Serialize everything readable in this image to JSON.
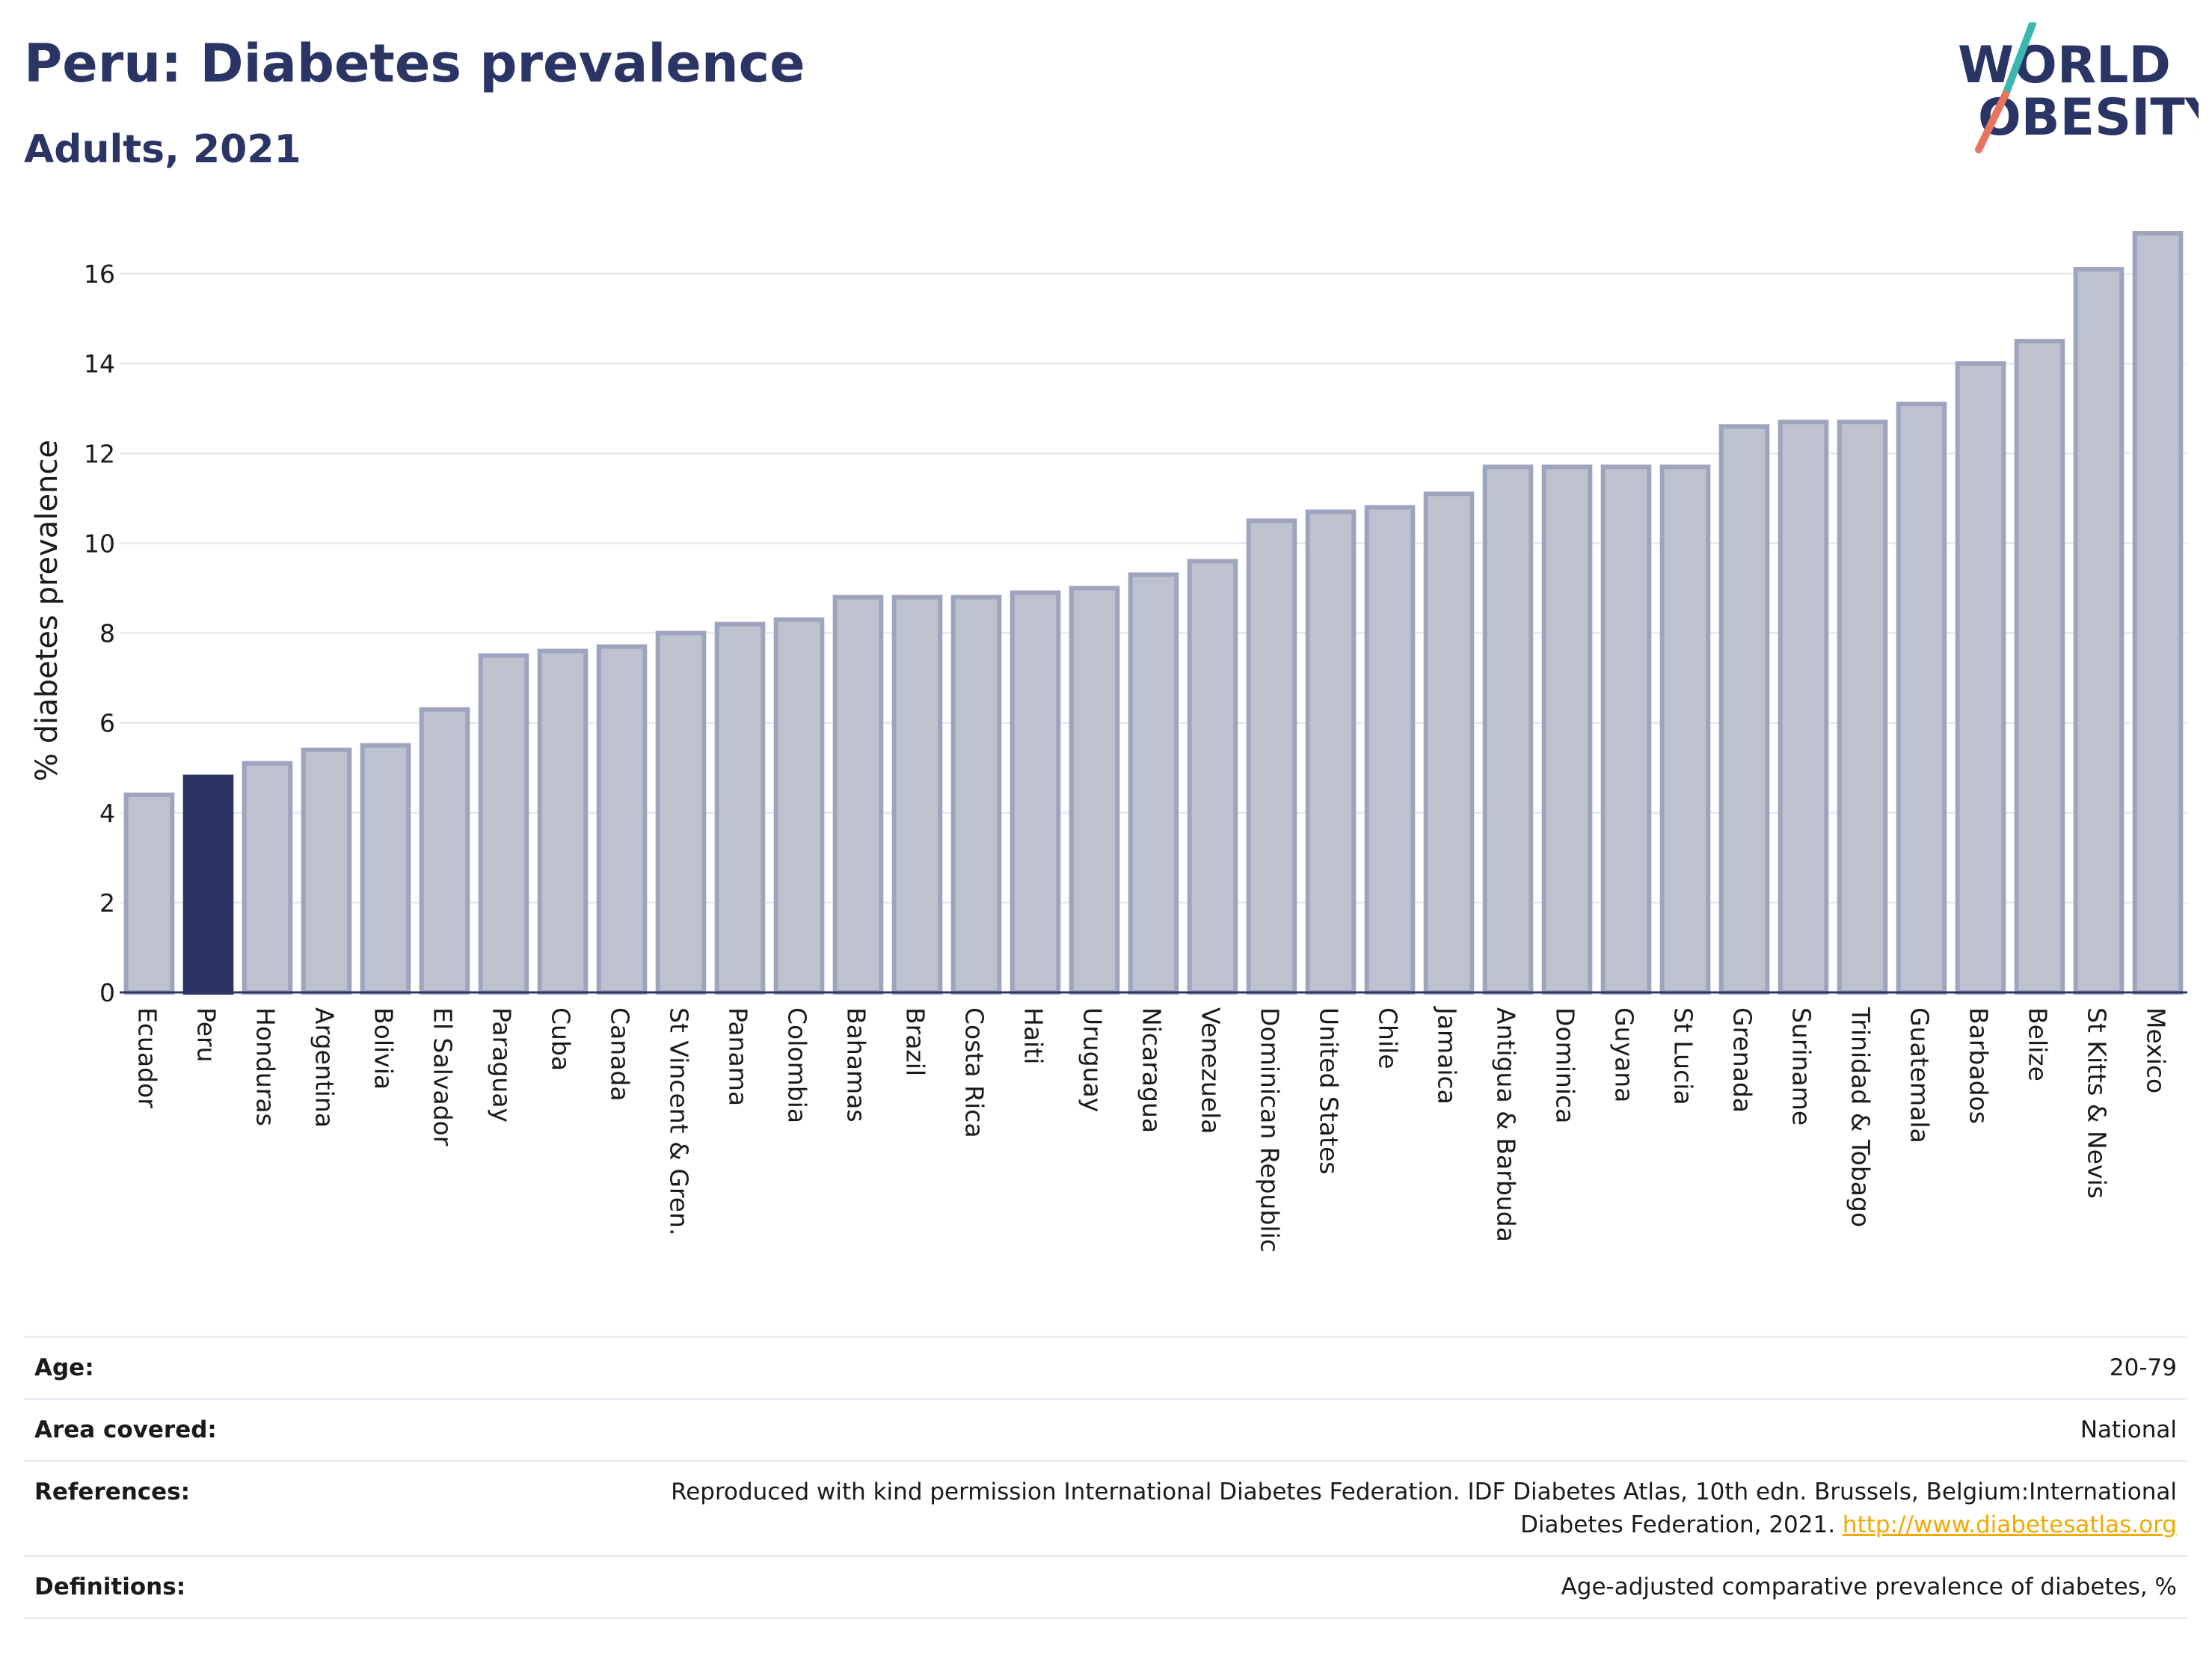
{
  "header": {
    "title": "Peru: Diabetes prevalence",
    "subtitle": "Adults, 2021",
    "logo_line1": "WORLD",
    "logo_line2": "OBESITY"
  },
  "colors": {
    "title": "#2b3565",
    "highlight_bar": "#2b3565",
    "other_bar_fill": "#bec2cf",
    "other_bar_stroke": "#9ea4bd",
    "grid": "#e6e8ee",
    "logo_teal": "#39b7b0",
    "logo_coral": "#e8735f",
    "link": "#f2a900"
  },
  "chart_data": {
    "type": "bar",
    "ylabel": "% diabetes prevalence",
    "xlabel": "",
    "ylim": [
      0,
      17
    ],
    "yticks": [
      0,
      2,
      4,
      6,
      8,
      10,
      12,
      14,
      16
    ],
    "grid": true,
    "highlight": "Peru",
    "categories": [
      "Ecuador",
      "Peru",
      "Honduras",
      "Argentina",
      "Bolivia",
      "El Salvador",
      "Paraguay",
      "Cuba",
      "Canada",
      "St Vincent & Gren.",
      "Panama",
      "Colombia",
      "Bahamas",
      "Brazil",
      "Costa Rica",
      "Haiti",
      "Uruguay",
      "Nicaragua",
      "Venezuela",
      "Dominican Republic",
      "United States",
      "Chile",
      "Jamaica",
      "Antigua & Barbuda",
      "Dominica",
      "Guyana",
      "St Lucia",
      "Grenada",
      "Suriname",
      "Trinidad & Tobago",
      "Guatemala",
      "Barbados",
      "Belize",
      "St Kitts & Nevis",
      "Mexico"
    ],
    "values": [
      4.4,
      4.8,
      5.1,
      5.4,
      5.5,
      6.3,
      7.5,
      7.6,
      7.7,
      8.0,
      8.2,
      8.3,
      8.8,
      8.8,
      8.8,
      8.9,
      9.0,
      9.3,
      9.6,
      10.5,
      10.7,
      10.8,
      11.1,
      11.7,
      11.7,
      11.7,
      11.7,
      12.6,
      12.7,
      12.7,
      13.1,
      14.0,
      14.5,
      16.1,
      16.9
    ]
  },
  "info": {
    "age_label": "Age:",
    "age_value": "20-79",
    "area_label": "Area covered:",
    "area_value": "National",
    "references_label": "References:",
    "references_line1": "Reproduced with kind permission International Diabetes Federation.  IDF Diabetes Atlas, 10th edn. Brussels, Belgium:International",
    "references_line2": "Diabetes Federation, 2021. ",
    "references_link": "http://www.diabetesatlas.org",
    "definitions_label": "Definitions:",
    "definitions_value": "Age-adjusted comparative prevalence of diabetes, %"
  }
}
